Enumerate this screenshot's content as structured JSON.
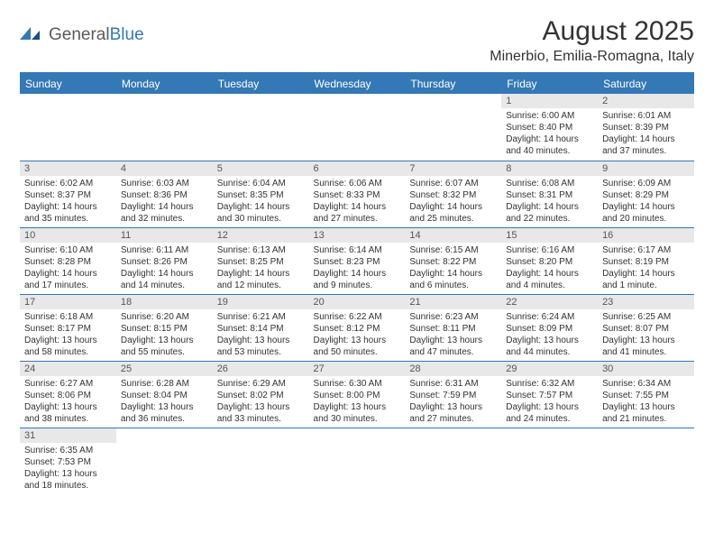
{
  "logo": {
    "text1": "General",
    "text2": "Blue"
  },
  "title": "August 2025",
  "location": "Minerbio, Emilia-Romagna, Italy",
  "colors": {
    "accent": "#3478b5",
    "header_bg": "#3478b5",
    "daynum_bg": "#e8e8e8",
    "text": "#333333"
  },
  "daynames": [
    "Sunday",
    "Monday",
    "Tuesday",
    "Wednesday",
    "Thursday",
    "Friday",
    "Saturday"
  ],
  "weeks": [
    [
      null,
      null,
      null,
      null,
      null,
      {
        "n": "1",
        "sr": "6:00 AM",
        "ss": "8:40 PM",
        "dl": "14 hours and 40 minutes."
      },
      {
        "n": "2",
        "sr": "6:01 AM",
        "ss": "8:39 PM",
        "dl": "14 hours and 37 minutes."
      }
    ],
    [
      {
        "n": "3",
        "sr": "6:02 AM",
        "ss": "8:37 PM",
        "dl": "14 hours and 35 minutes."
      },
      {
        "n": "4",
        "sr": "6:03 AM",
        "ss": "8:36 PM",
        "dl": "14 hours and 32 minutes."
      },
      {
        "n": "5",
        "sr": "6:04 AM",
        "ss": "8:35 PM",
        "dl": "14 hours and 30 minutes."
      },
      {
        "n": "6",
        "sr": "6:06 AM",
        "ss": "8:33 PM",
        "dl": "14 hours and 27 minutes."
      },
      {
        "n": "7",
        "sr": "6:07 AM",
        "ss": "8:32 PM",
        "dl": "14 hours and 25 minutes."
      },
      {
        "n": "8",
        "sr": "6:08 AM",
        "ss": "8:31 PM",
        "dl": "14 hours and 22 minutes."
      },
      {
        "n": "9",
        "sr": "6:09 AM",
        "ss": "8:29 PM",
        "dl": "14 hours and 20 minutes."
      }
    ],
    [
      {
        "n": "10",
        "sr": "6:10 AM",
        "ss": "8:28 PM",
        "dl": "14 hours and 17 minutes."
      },
      {
        "n": "11",
        "sr": "6:11 AM",
        "ss": "8:26 PM",
        "dl": "14 hours and 14 minutes."
      },
      {
        "n": "12",
        "sr": "6:13 AM",
        "ss": "8:25 PM",
        "dl": "14 hours and 12 minutes."
      },
      {
        "n": "13",
        "sr": "6:14 AM",
        "ss": "8:23 PM",
        "dl": "14 hours and 9 minutes."
      },
      {
        "n": "14",
        "sr": "6:15 AM",
        "ss": "8:22 PM",
        "dl": "14 hours and 6 minutes."
      },
      {
        "n": "15",
        "sr": "6:16 AM",
        "ss": "8:20 PM",
        "dl": "14 hours and 4 minutes."
      },
      {
        "n": "16",
        "sr": "6:17 AM",
        "ss": "8:19 PM",
        "dl": "14 hours and 1 minute."
      }
    ],
    [
      {
        "n": "17",
        "sr": "6:18 AM",
        "ss": "8:17 PM",
        "dl": "13 hours and 58 minutes."
      },
      {
        "n": "18",
        "sr": "6:20 AM",
        "ss": "8:15 PM",
        "dl": "13 hours and 55 minutes."
      },
      {
        "n": "19",
        "sr": "6:21 AM",
        "ss": "8:14 PM",
        "dl": "13 hours and 53 minutes."
      },
      {
        "n": "20",
        "sr": "6:22 AM",
        "ss": "8:12 PM",
        "dl": "13 hours and 50 minutes."
      },
      {
        "n": "21",
        "sr": "6:23 AM",
        "ss": "8:11 PM",
        "dl": "13 hours and 47 minutes."
      },
      {
        "n": "22",
        "sr": "6:24 AM",
        "ss": "8:09 PM",
        "dl": "13 hours and 44 minutes."
      },
      {
        "n": "23",
        "sr": "6:25 AM",
        "ss": "8:07 PM",
        "dl": "13 hours and 41 minutes."
      }
    ],
    [
      {
        "n": "24",
        "sr": "6:27 AM",
        "ss": "8:06 PM",
        "dl": "13 hours and 38 minutes."
      },
      {
        "n": "25",
        "sr": "6:28 AM",
        "ss": "8:04 PM",
        "dl": "13 hours and 36 minutes."
      },
      {
        "n": "26",
        "sr": "6:29 AM",
        "ss": "8:02 PM",
        "dl": "13 hours and 33 minutes."
      },
      {
        "n": "27",
        "sr": "6:30 AM",
        "ss": "8:00 PM",
        "dl": "13 hours and 30 minutes."
      },
      {
        "n": "28",
        "sr": "6:31 AM",
        "ss": "7:59 PM",
        "dl": "13 hours and 27 minutes."
      },
      {
        "n": "29",
        "sr": "6:32 AM",
        "ss": "7:57 PM",
        "dl": "13 hours and 24 minutes."
      },
      {
        "n": "30",
        "sr": "6:34 AM",
        "ss": "7:55 PM",
        "dl": "13 hours and 21 minutes."
      }
    ],
    [
      {
        "n": "31",
        "sr": "6:35 AM",
        "ss": "7:53 PM",
        "dl": "13 hours and 18 minutes."
      },
      null,
      null,
      null,
      null,
      null,
      null
    ]
  ],
  "labels": {
    "sunrise": "Sunrise:",
    "sunset": "Sunset:",
    "daylight": "Daylight:"
  }
}
